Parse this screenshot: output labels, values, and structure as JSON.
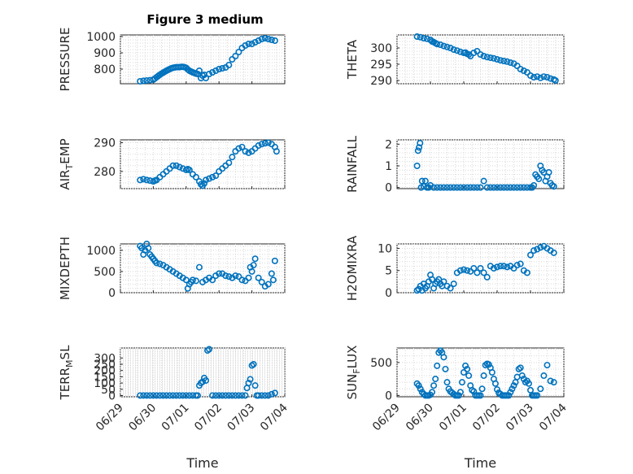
{
  "figure": {
    "title": "Figure 3 medium",
    "marker_color": "#0072BD",
    "xlabel": "Time"
  },
  "chart_data": [
    {
      "type": "scatter",
      "title": "Figure 3 medium",
      "ylabel": "PRESSURE",
      "ylabel_sub": "",
      "ylabel_rest": "",
      "xlim": [
        0,
        5
      ],
      "ylim": [
        710,
        1010
      ],
      "yticks": [
        800,
        900,
        1000
      ],
      "xticks": [
        "06/29",
        "06/30",
        "07/01",
        "07/02",
        "07/03",
        "07/04"
      ],
      "show_xticklabels": false,
      "xlabel": "",
      "grid": true,
      "x": [
        0.6,
        0.7,
        0.8,
        0.9,
        1.0,
        1.05,
        1.1,
        1.15,
        1.2,
        1.25,
        1.3,
        1.35,
        1.4,
        1.45,
        1.5,
        1.55,
        1.6,
        1.65,
        1.7,
        1.75,
        1.8,
        1.85,
        1.9,
        1.95,
        2.0,
        2.05,
        2.1,
        2.15,
        2.2,
        2.25,
        2.3,
        2.35,
        2.4,
        2.5,
        2.6,
        2.7,
        2.8,
        2.9,
        3.0,
        3.1,
        3.2,
        3.3,
        3.4,
        3.5,
        3.6,
        3.7,
        3.8,
        3.9,
        4.0,
        4.1,
        4.2,
        4.3,
        4.4,
        4.5,
        4.6,
        4.7,
        2.45,
        2.55
      ],
      "y": [
        725,
        728,
        730,
        732,
        735,
        742,
        750,
        758,
        765,
        772,
        778,
        784,
        790,
        795,
        800,
        805,
        808,
        810,
        812,
        812,
        812,
        814,
        814,
        812,
        808,
        798,
        790,
        785,
        780,
        776,
        772,
        770,
        790,
        760,
        745,
        770,
        780,
        790,
        800,
        805,
        810,
        825,
        860,
        880,
        905,
        930,
        945,
        955,
        955,
        965,
        975,
        985,
        990,
        985,
        980,
        975,
        745,
        765
      ]
    },
    {
      "type": "scatter",
      "title": "",
      "ylabel": "THETA",
      "ylabel_sub": "",
      "ylabel_rest": "",
      "xlim": [
        0,
        5
      ],
      "ylim": [
        289,
        304
      ],
      "yticks": [
        290,
        295,
        300
      ],
      "xticks": [
        "06/29",
        "06/30",
        "07/01",
        "07/02",
        "07/03",
        "07/04"
      ],
      "show_xticklabels": false,
      "xlabel": "",
      "grid": true,
      "x": [
        0.6,
        0.7,
        0.8,
        0.9,
        1.0,
        1.05,
        1.1,
        1.15,
        1.2,
        1.3,
        1.4,
        1.5,
        1.6,
        1.7,
        1.8,
        1.9,
        2.0,
        2.05,
        2.1,
        2.15,
        2.2,
        2.3,
        2.4,
        2.5,
        2.6,
        2.7,
        2.8,
        2.9,
        3.0,
        3.1,
        3.2,
        3.3,
        3.4,
        3.5,
        3.6,
        3.7,
        3.8,
        3.9,
        4.0,
        4.1,
        4.2,
        4.3,
        4.4,
        4.5,
        4.6,
        4.7,
        4.75
      ],
      "y": [
        303.5,
        303.3,
        303,
        302.8,
        302.5,
        302,
        301.8,
        301.5,
        301.2,
        301,
        300.6,
        300.3,
        300,
        299.5,
        299.2,
        298.8,
        298.5,
        298.6,
        298.2,
        298,
        297.5,
        298.5,
        299,
        298,
        297.5,
        297.2,
        297,
        296.8,
        296.5,
        296.2,
        296,
        295.8,
        295.5,
        295.2,
        294.5,
        293.5,
        293,
        292.5,
        291.5,
        291,
        291.2,
        290.8,
        291.2,
        291,
        290.6,
        290.3,
        290
      ]
    },
    {
      "type": "scatter",
      "title": "",
      "ylabel": "AIR",
      "ylabel_sub": "T",
      "ylabel_rest": "EMP",
      "xlim": [
        0,
        5
      ],
      "ylim": [
        274,
        291
      ],
      "yticks": [
        280,
        290
      ],
      "xticks": [
        "06/29",
        "06/30",
        "07/01",
        "07/02",
        "07/03",
        "07/04"
      ],
      "show_xticklabels": false,
      "xlabel": "",
      "grid": true,
      "x": [
        0.6,
        0.7,
        0.8,
        0.9,
        1.0,
        1.05,
        1.1,
        1.2,
        1.3,
        1.4,
        1.5,
        1.6,
        1.7,
        1.8,
        1.9,
        2.0,
        2.05,
        2.1,
        2.2,
        2.3,
        2.4,
        2.45,
        2.5,
        2.55,
        2.6,
        2.7,
        2.8,
        2.9,
        3.0,
        3.1,
        3.2,
        3.3,
        3.4,
        3.5,
        3.6,
        3.7,
        3.8,
        3.9,
        4.0,
        4.1,
        4.2,
        4.3,
        4.4,
        4.5,
        4.6,
        4.7,
        4.75
      ],
      "y": [
        277,
        277.3,
        277,
        276.8,
        276.5,
        276.8,
        277,
        278,
        279,
        280,
        281,
        282,
        282,
        281.5,
        281,
        280.5,
        280.8,
        280.5,
        279,
        278,
        276.5,
        275.5,
        275,
        275.8,
        277,
        277.5,
        278,
        278.5,
        280,
        281,
        282,
        283,
        285,
        287,
        288,
        288.5,
        287,
        286.5,
        287,
        288,
        289,
        289.5,
        289.8,
        290,
        289.5,
        288.5,
        287
      ]
    },
    {
      "type": "scatter",
      "title": "",
      "ylabel": "RAINFALL",
      "ylabel_sub": "",
      "ylabel_rest": "",
      "xlim": [
        0,
        5
      ],
      "ylim": [
        -0.05,
        2.2
      ],
      "yticks": [
        0,
        1,
        2
      ],
      "xticks": [
        "06/29",
        "06/30",
        "07/01",
        "07/02",
        "07/03",
        "07/04"
      ],
      "show_xticklabels": false,
      "xlabel": "",
      "grid": true,
      "x": [
        0.6,
        0.63,
        0.66,
        0.69,
        0.72,
        0.75,
        0.8,
        0.85,
        0.9,
        0.95,
        1.0,
        1.1,
        1.2,
        1.3,
        1.4,
        1.5,
        1.6,
        1.7,
        1.8,
        1.9,
        2.0,
        2.1,
        2.2,
        2.3,
        2.4,
        2.5,
        2.6,
        2.7,
        2.8,
        2.9,
        3.0,
        3.1,
        3.2,
        3.3,
        3.4,
        3.5,
        3.6,
        3.7,
        3.8,
        3.9,
        4.0,
        4.05,
        4.1,
        4.15,
        4.2,
        4.25,
        4.3,
        4.35,
        4.4,
        4.45,
        4.5,
        4.55,
        4.6,
        4.65,
        4.7
      ],
      "y": [
        1.0,
        1.7,
        1.85,
        2.05,
        0.0,
        0.3,
        0.05,
        0.3,
        0.0,
        0.0,
        0.1,
        0.0,
        0.0,
        0.0,
        0.0,
        0.0,
        0.0,
        0.0,
        0.0,
        0.0,
        0.0,
        0.0,
        0.0,
        0.0,
        0.0,
        0.0,
        0.3,
        0.0,
        0.0,
        0.0,
        0.0,
        0.0,
        0.0,
        0.0,
        0.0,
        0.0,
        0.0,
        0.0,
        0.0,
        0.0,
        0.0,
        0.0,
        0.1,
        0.6,
        0.5,
        0.4,
        1.0,
        0.8,
        0.7,
        0.3,
        0.5,
        0.7,
        0.2,
        0.1,
        0.05
      ]
    },
    {
      "type": "scatter",
      "title": "",
      "ylabel": "MIXDEPTH",
      "ylabel_sub": "",
      "ylabel_rest": "",
      "xlim": [
        0,
        5
      ],
      "ylim": [
        0,
        1150
      ],
      "yticks": [
        0,
        500,
        1000
      ],
      "xticks": [
        "06/29",
        "06/30",
        "07/01",
        "07/02",
        "07/03",
        "07/04"
      ],
      "show_xticklabels": false,
      "xlabel": "",
      "grid": true,
      "x": [
        0.6,
        0.65,
        0.7,
        0.75,
        0.8,
        0.85,
        0.9,
        0.95,
        1.0,
        1.05,
        1.1,
        1.2,
        1.3,
        1.4,
        1.5,
        1.6,
        1.7,
        1.8,
        1.9,
        2.0,
        2.05,
        2.1,
        2.15,
        2.2,
        2.3,
        2.4,
        2.5,
        2.6,
        2.7,
        2.8,
        2.9,
        3.0,
        3.1,
        3.2,
        3.3,
        3.4,
        3.5,
        3.6,
        3.7,
        3.8,
        3.9,
        3.95,
        4.0,
        4.05,
        4.1,
        4.2,
        4.3,
        4.4,
        4.5,
        4.6,
        4.65,
        4.7
      ],
      "y": [
        1100,
        1050,
        900,
        1000,
        1150,
        1050,
        900,
        850,
        800,
        750,
        700,
        680,
        650,
        600,
        550,
        500,
        450,
        400,
        350,
        300,
        100,
        200,
        250,
        300,
        280,
        600,
        250,
        300,
        350,
        300,
        400,
        450,
        450,
        400,
        380,
        350,
        400,
        380,
        300,
        280,
        350,
        600,
        500,
        650,
        800,
        350,
        250,
        150,
        200,
        450,
        300,
        750
      ]
    },
    {
      "type": "scatter",
      "title": "",
      "ylabel": "H2OMIXRA",
      "ylabel_sub": "",
      "ylabel_rest": "",
      "xlim": [
        0,
        5
      ],
      "ylim": [
        0,
        11
      ],
      "yticks": [
        0,
        5,
        10
      ],
      "xticks": [
        "06/29",
        "06/30",
        "07/01",
        "07/02",
        "07/03",
        "07/04"
      ],
      "show_xticklabels": false,
      "xlabel": "",
      "grid": true,
      "x": [
        0.6,
        0.65,
        0.7,
        0.75,
        0.8,
        0.85,
        0.9,
        0.95,
        1.0,
        1.05,
        1.1,
        1.15,
        1.2,
        1.25,
        1.3,
        1.35,
        1.4,
        1.5,
        1.6,
        1.7,
        1.8,
        1.9,
        2.0,
        2.1,
        2.2,
        2.3,
        2.4,
        2.5,
        2.6,
        2.7,
        2.8,
        2.9,
        3.0,
        3.1,
        3.2,
        3.3,
        3.4,
        3.5,
        3.6,
        3.7,
        3.8,
        3.9,
        4.0,
        4.1,
        4.2,
        4.3,
        4.4,
        4.5,
        4.6,
        4.7
      ],
      "y": [
        0.5,
        0.8,
        1.5,
        0.5,
        2.0,
        1.0,
        1.5,
        2.5,
        4.0,
        3.0,
        1.0,
        2.0,
        2.5,
        3.0,
        2.0,
        1.5,
        2.5,
        1.5,
        1.0,
        2.0,
        4.5,
        5.0,
        5.2,
        5.0,
        4.8,
        5.5,
        4.5,
        5.5,
        4.5,
        3.5,
        6.0,
        5.5,
        5.8,
        6.0,
        6.0,
        5.8,
        6.0,
        5.5,
        6.2,
        6.5,
        5.0,
        4.5,
        8.5,
        9.5,
        9.8,
        10.2,
        10.5,
        10.0,
        9.5,
        9.0
      ]
    },
    {
      "type": "scatter",
      "title": "",
      "ylabel": "TERR",
      "ylabel_sub": "M",
      "ylabel_rest": "SL",
      "xlim": [
        0,
        5
      ],
      "ylim": [
        -10,
        380
      ],
      "yticks": [
        0,
        50,
        100,
        150,
        200,
        250,
        300
      ],
      "xticks": [
        "06/29",
        "06/30",
        "07/01",
        "07/02",
        "07/03",
        "07/04"
      ],
      "show_xticklabels": true,
      "xlabel": "Time",
      "grid": true,
      "x": [
        0.6,
        0.7,
        0.8,
        0.9,
        1.0,
        1.1,
        1.2,
        1.3,
        1.4,
        1.5,
        1.6,
        1.7,
        1.8,
        1.9,
        2.0,
        2.1,
        2.2,
        2.3,
        2.35,
        2.4,
        2.45,
        2.5,
        2.55,
        2.6,
        2.65,
        2.7,
        2.8,
        2.9,
        3.0,
        3.1,
        3.2,
        3.3,
        3.4,
        3.5,
        3.6,
        3.7,
        3.8,
        3.85,
        3.9,
        3.95,
        4.0,
        4.05,
        4.1,
        4.15,
        4.2,
        4.3,
        4.4,
        4.5,
        4.6,
        4.7
      ],
      "y": [
        0,
        0,
        0,
        0,
        0,
        0,
        0,
        0,
        0,
        0,
        0,
        0,
        0,
        0,
        0,
        0,
        0,
        0,
        0,
        80,
        100,
        110,
        140,
        120,
        360,
        370,
        0,
        0,
        0,
        0,
        0,
        0,
        0,
        0,
        0,
        0,
        0,
        60,
        100,
        130,
        240,
        250,
        80,
        0,
        0,
        0,
        0,
        0,
        10,
        20
      ]
    },
    {
      "type": "scatter",
      "title": "",
      "ylabel": "SUN",
      "ylabel_sub": "F",
      "ylabel_rest": "LUX",
      "xlim": [
        0,
        5
      ],
      "ylim": [
        -20,
        720
      ],
      "yticks": [
        0,
        500
      ],
      "xticks": [
        "06/29",
        "06/30",
        "07/01",
        "07/02",
        "07/03",
        "07/04"
      ],
      "show_xticklabels": true,
      "xlabel": "Time",
      "grid": true,
      "x": [
        0.6,
        0.65,
        0.7,
        0.75,
        0.8,
        0.85,
        0.9,
        0.95,
        1.0,
        1.05,
        1.1,
        1.15,
        1.2,
        1.25,
        1.3,
        1.35,
        1.4,
        1.45,
        1.5,
        1.55,
        1.6,
        1.65,
        1.7,
        1.75,
        1.8,
        1.85,
        1.9,
        1.95,
        2.0,
        2.05,
        2.1,
        2.15,
        2.2,
        2.25,
        2.3,
        2.35,
        2.4,
        2.45,
        2.5,
        2.55,
        2.6,
        2.65,
        2.7,
        2.75,
        2.8,
        2.85,
        2.9,
        2.95,
        3.0,
        3.05,
        3.1,
        3.15,
        3.2,
        3.25,
        3.3,
        3.35,
        3.4,
        3.45,
        3.5,
        3.55,
        3.6,
        3.65,
        3.7,
        3.75,
        3.8,
        3.85,
        3.9,
        3.95,
        4.0,
        4.05,
        4.1,
        4.15,
        4.2,
        4.3,
        4.4,
        4.5,
        4.6,
        4.7
      ],
      "y": [
        180,
        150,
        100,
        50,
        20,
        0,
        0,
        0,
        10,
        50,
        150,
        250,
        450,
        650,
        680,
        650,
        580,
        400,
        200,
        100,
        60,
        40,
        20,
        0,
        0,
        0,
        50,
        200,
        350,
        450,
        400,
        300,
        150,
        80,
        60,
        0,
        0,
        0,
        0,
        100,
        300,
        460,
        480,
        470,
        420,
        350,
        250,
        180,
        90,
        40,
        20,
        0,
        0,
        0,
        0,
        0,
        50,
        100,
        150,
        200,
        280,
        400,
        420,
        300,
        250,
        200,
        220,
        180,
        80,
        0,
        0,
        0,
        0,
        100,
        300,
        460,
        220,
        200
      ]
    }
  ]
}
